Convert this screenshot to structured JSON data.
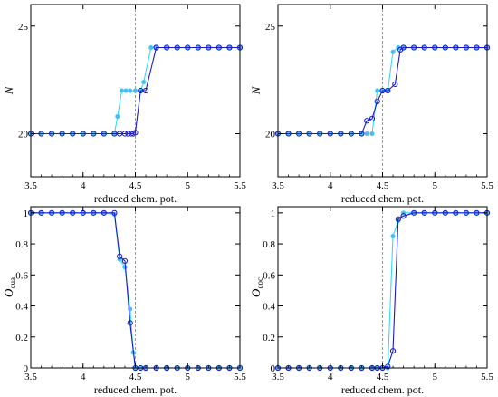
{
  "colors": {
    "dark": "#1a1ac8",
    "light": "#33d9ff",
    "marker_fill": "#5fb3e6",
    "vline": "#999999"
  },
  "chart_data": [
    {
      "type": "line",
      "xlabel": "reduced chem. pot.",
      "ylabel": "N",
      "xlim": [
        3.5,
        5.5
      ],
      "ylim": [
        18,
        26
      ],
      "xticks": [
        "3.5",
        "4",
        "4.5",
        "5",
        "5.5"
      ],
      "yticks": [
        "20",
        "25"
      ],
      "ytick_values": [
        20,
        25
      ],
      "vline": 4.5,
      "series": [
        {
          "role": "dark",
          "x": [
            3.5,
            3.6,
            3.7,
            3.8,
            3.9,
            4.0,
            4.1,
            4.2,
            4.3,
            4.35,
            4.4,
            4.43,
            4.46,
            4.48,
            4.5,
            4.55,
            4.6,
            4.7,
            4.8,
            4.9,
            5.0,
            5.1,
            5.2,
            5.3,
            5.4,
            5.5
          ],
          "y": [
            20,
            20,
            20,
            20,
            20,
            20,
            20,
            20,
            20,
            20,
            20,
            20,
            20,
            20,
            20.05,
            22,
            22,
            24,
            24,
            24,
            24,
            24,
            24,
            24,
            24,
            24
          ]
        },
        {
          "role": "light",
          "x": [
            3.5,
            3.6,
            3.7,
            3.8,
            3.9,
            4.0,
            4.1,
            4.2,
            4.3,
            4.33,
            4.37,
            4.41,
            4.45,
            4.5,
            4.55,
            4.58,
            4.65,
            4.7,
            4.8,
            4.9,
            5.0,
            5.1,
            5.2,
            5.3,
            5.4,
            5.5
          ],
          "y": [
            20,
            20,
            20,
            20,
            20,
            20,
            20,
            20,
            20,
            20.8,
            22,
            22,
            22,
            22,
            22,
            22.4,
            24,
            24,
            24,
            24,
            24,
            24,
            24,
            24,
            24,
            24
          ]
        }
      ]
    },
    {
      "type": "line",
      "xlabel": "reduced chem. pot.",
      "ylabel": "N",
      "xlim": [
        3.5,
        5.5
      ],
      "ylim": [
        18,
        26
      ],
      "xticks": [
        "3.5",
        "4",
        "4.5",
        "5",
        "5.5"
      ],
      "yticks": [
        "20",
        "25"
      ],
      "ytick_values": [
        20,
        25
      ],
      "vline": 4.5,
      "series": [
        {
          "role": "dark",
          "x": [
            3.5,
            3.6,
            3.7,
            3.8,
            3.9,
            4.0,
            4.1,
            4.2,
            4.3,
            4.35,
            4.4,
            4.45,
            4.5,
            4.55,
            4.62,
            4.67,
            4.7,
            4.8,
            4.9,
            5.0,
            5.1,
            5.2,
            5.3,
            5.4,
            5.5
          ],
          "y": [
            20,
            20,
            20,
            20,
            20,
            20,
            20,
            20,
            20,
            20.6,
            20.7,
            21.5,
            22,
            22,
            22.3,
            23.9,
            24,
            24,
            24,
            24,
            24,
            24,
            24,
            24,
            24
          ]
        },
        {
          "role": "light",
          "x": [
            3.5,
            3.6,
            3.7,
            3.8,
            3.9,
            4.0,
            4.1,
            4.2,
            4.3,
            4.35,
            4.4,
            4.45,
            4.5,
            4.55,
            4.6,
            4.65,
            4.7,
            4.8,
            4.9,
            5.0,
            5.1,
            5.2,
            5.3,
            5.4,
            5.5
          ],
          "y": [
            20,
            20,
            20,
            20,
            20,
            20,
            20,
            20,
            20,
            20,
            20,
            22,
            22,
            22,
            23.8,
            24,
            24,
            24,
            24,
            24,
            24,
            24,
            24,
            24,
            24
          ]
        }
      ]
    },
    {
      "type": "line",
      "xlabel": "reduced chem. pot.",
      "ylabel": "O",
      "ylabel_sub": "cua",
      "xlim": [
        3.5,
        5.5
      ],
      "ylim": [
        0,
        1.04
      ],
      "xticks": [
        "3.5",
        "4",
        "4.5",
        "5",
        "5.5"
      ],
      "yticks": [
        "0",
        "0.2",
        "0.4",
        "0.6",
        "0.8",
        "1"
      ],
      "ytick_values": [
        0,
        0.2,
        0.4,
        0.6,
        0.8,
        1
      ],
      "vline": 4.5,
      "series": [
        {
          "role": "dark",
          "x": [
            3.5,
            3.6,
            3.7,
            3.8,
            3.9,
            4.0,
            4.1,
            4.2,
            4.3,
            4.35,
            4.4,
            4.45,
            4.5,
            4.55,
            4.6,
            4.7,
            4.8,
            4.9,
            5.0,
            5.1,
            5.2,
            5.3,
            5.4,
            5.5
          ],
          "y": [
            1,
            1,
            1,
            1,
            1,
            1,
            1,
            1,
            1,
            0.72,
            0.69,
            0.29,
            0,
            0,
            0,
            0,
            0,
            0,
            0,
            0,
            0,
            0,
            0,
            0
          ]
        },
        {
          "role": "light",
          "x": [
            3.5,
            3.6,
            3.7,
            3.8,
            3.9,
            4.0,
            4.1,
            4.2,
            4.3,
            4.35,
            4.4,
            4.45,
            4.48,
            4.5,
            4.55,
            4.6,
            4.7,
            4.8,
            4.9,
            5.0,
            5.1,
            5.2,
            5.3,
            5.4,
            5.5
          ],
          "y": [
            1,
            1,
            1,
            1,
            1,
            1,
            1,
            1,
            0.99,
            0.7,
            0.65,
            0.38,
            0.1,
            0,
            0,
            0,
            0,
            0,
            0,
            0,
            0,
            0,
            0,
            0,
            0
          ]
        }
      ]
    },
    {
      "type": "line",
      "xlabel": "reduced chem. pot.",
      "ylabel": "O",
      "ylabel_sub": "coc",
      "xlim": [
        3.5,
        5.5
      ],
      "ylim": [
        0,
        1.04
      ],
      "xticks": [
        "3.5",
        "4",
        "4.5",
        "5",
        "5.5"
      ],
      "yticks": [
        "0",
        "0.2",
        "0.4",
        "0.6",
        "0.8",
        "1"
      ],
      "ytick_values": [
        0,
        0.2,
        0.4,
        0.6,
        0.8,
        1
      ],
      "vline": 4.5,
      "series": [
        {
          "role": "dark",
          "x": [
            3.5,
            3.6,
            3.7,
            3.8,
            3.9,
            4.0,
            4.1,
            4.2,
            4.3,
            4.4,
            4.45,
            4.5,
            4.55,
            4.6,
            4.65,
            4.7,
            4.8,
            4.9,
            5.0,
            5.1,
            5.2,
            5.3,
            5.4,
            5.5
          ],
          "y": [
            0,
            0,
            0,
            0,
            0,
            0,
            0,
            0,
            0,
            0,
            0,
            0,
            0.01,
            0.11,
            0.96,
            0.98,
            1,
            1,
            1,
            1,
            1,
            1,
            1,
            1
          ]
        },
        {
          "role": "light",
          "x": [
            3.5,
            3.6,
            3.7,
            3.8,
            3.9,
            4.0,
            4.1,
            4.2,
            4.3,
            4.4,
            4.45,
            4.5,
            4.55,
            4.6,
            4.65,
            4.7,
            4.8,
            4.9,
            5.0,
            5.1,
            5.2,
            5.3,
            5.4,
            5.5
          ],
          "y": [
            0,
            0,
            0,
            0,
            0,
            0,
            0,
            0,
            0,
            0,
            0,
            0,
            0,
            0.85,
            0.95,
            1,
            1,
            1,
            1,
            1,
            1,
            1,
            1,
            1
          ]
        }
      ]
    }
  ]
}
